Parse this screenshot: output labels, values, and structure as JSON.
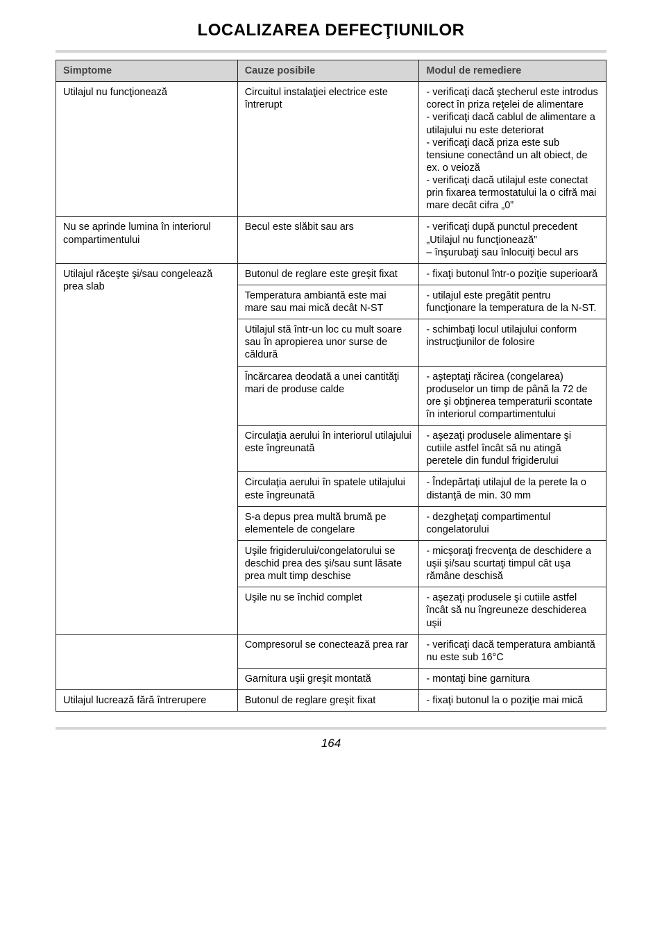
{
  "title": "LOCALIZAREA DEFECŢIUNILOR",
  "page_number": "164",
  "headers": {
    "symptoms": "Simptome",
    "causes": "Cauze posibile",
    "remedy": "Modul de remediere"
  },
  "rows": [
    {
      "symptom": "Utilajul nu funcţionează",
      "cause": "Circuitul instalaţiei electrice este întrerupt",
      "remedy": "- verificaţi dacă ştecherul este introdus corect în priza reţelei de alimentare\n- verificaţi dacă cablul de alimentare a utilajului nu este deteriorat\n- verificaţi dacă priza este sub tensiune conectând un alt obiect, de ex. o veioză\n- verificaţi dacă utilajul este conectat  prin fixarea termostatului la o cifră mai mare decât cifra „0”",
      "symptom_rowspan": 1
    },
    {
      "symptom": "Nu se aprinde lumina în interiorul compartimentului",
      "cause": "Becul este slăbit sau ars",
      "remedy": "- verificaţi după punctul precedent „Utilajul nu funcţionează”\n– înşurubaţi sau înlocuiţi becul ars",
      "symptom_rowspan": 1
    },
    {
      "symptom": "Utilajul răceşte şi/sau congelează prea slab",
      "cause": "Butonul de reglare este greşit fixat",
      "remedy": "- fixaţi butonul într-o poziţie superioară",
      "symptom_rowspan": 9
    },
    {
      "symptom": null,
      "cause": "Temperatura ambiantă este mai mare sau mai mică decât N-ST",
      "remedy": "- utilajul este pregătit pentru funcţionare la temperatura de la  N-ST."
    },
    {
      "symptom": null,
      "cause": "Utilajul stă într-un loc cu mult soare sau în apropierea unor surse de căldură",
      "remedy": "- schimbaţi locul utilajului  conform instrucţiunilor de folosire"
    },
    {
      "symptom": null,
      "cause": "Încărcarea deodată a unei cantităţi mari de produse calde",
      "remedy": "- aşteptaţi răcirea (congelarea) produselor un timp de până la  72 de ore şi obţinerea temperaturii scontate în interiorul compartimentului"
    },
    {
      "symptom": null,
      "cause": "Circulaţia aerului în interiorul utilajului este îngreunată",
      "remedy": "- aşezaţi produsele alimentare şi cutiile astfel încât să nu atingă peretele din fundul frigiderului"
    },
    {
      "symptom": null,
      "cause": "Circulaţia aerului în spatele utilajului este îngreunată",
      "remedy": "- Îndepărtaţi utilajul de la perete la o distanţă de min. 30 mm"
    },
    {
      "symptom": null,
      "cause": "S-a depus prea multă brumă pe elementele de congelare",
      "remedy": "- dezgheţaţi compartimentul congelatorului"
    },
    {
      "symptom": null,
      "cause": "Uşile frigiderului/congelatorului se deschid prea des şi/sau sunt lăsate prea mult timp deschise",
      "remedy": "- micşoraţi frecvenţa de deschidere a uşii şi/sau scurtaţi timpul cât uşa rămâne deschisă"
    },
    {
      "symptom": null,
      "cause": "Uşile nu se închid complet",
      "remedy": "- aşezaţi produsele şi cutiile astfel încât să nu îngreuneze deschiderea uşii"
    },
    {
      "symptom": null,
      "cause": "Compresorul se conectează prea rar",
      "remedy": "- verificaţi dacă temperatura ambiantă nu este sub 16°C",
      "symptom_rowspan": 2,
      "symptom_text": ""
    },
    {
      "symptom": null,
      "cause": "Garnitura uşii greşit montată",
      "remedy": "- montaţi bine garnitura"
    },
    {
      "symptom": "Utilajul lucrează fără întrerupere",
      "cause": "Butonul de reglare greşit fixat",
      "remedy": "- fixaţi butonul la o poziţie mai mică",
      "symptom_rowspan": 1
    }
  ]
}
